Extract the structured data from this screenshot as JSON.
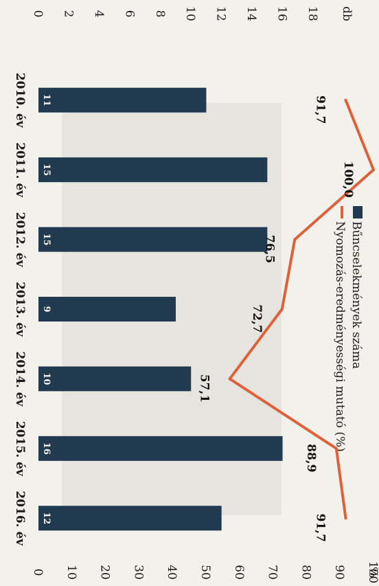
{
  "chart_data": {
    "type": "bar",
    "categories": [
      "2010. év",
      "2011. év",
      "2012. év",
      "2013. év",
      "2014. év",
      "2015. év",
      "2016. év"
    ],
    "series": [
      {
        "name": "Bűncselekmények száma",
        "type": "bar",
        "axis": "left",
        "values": [
          11,
          15,
          15,
          9,
          10,
          16,
          12
        ],
        "value_labels": [
          "11",
          "15",
          "15",
          "9",
          "10",
          "16",
          "12"
        ],
        "color": "#223a4f"
      },
      {
        "name": "Nyomozás-eredményességi mutató (%)",
        "type": "line",
        "axis": "right",
        "values": [
          91.7,
          100.0,
          76.5,
          72.7,
          57.1,
          88.9,
          91.7
        ],
        "value_labels": [
          "91,7",
          "100,0",
          "76,5",
          "72,7",
          "57,1",
          "88,9",
          "91,7"
        ],
        "color": "#e0603a"
      }
    ],
    "left_axis": {
      "unit": "db",
      "ticks": [
        "0",
        "2",
        "4",
        "6",
        "8",
        "10",
        "12",
        "14",
        "16",
        "18"
      ],
      "range": [
        0,
        18
      ]
    },
    "right_axis": {
      "unit": "%",
      "ticks": [
        "0",
        "10",
        "20",
        "30",
        "40",
        "50",
        "60",
        "70",
        "80",
        "90",
        "100"
      ],
      "range": [
        0,
        100
      ]
    },
    "orientation": "rotated-90-clockwise",
    "legend": "top-right"
  }
}
